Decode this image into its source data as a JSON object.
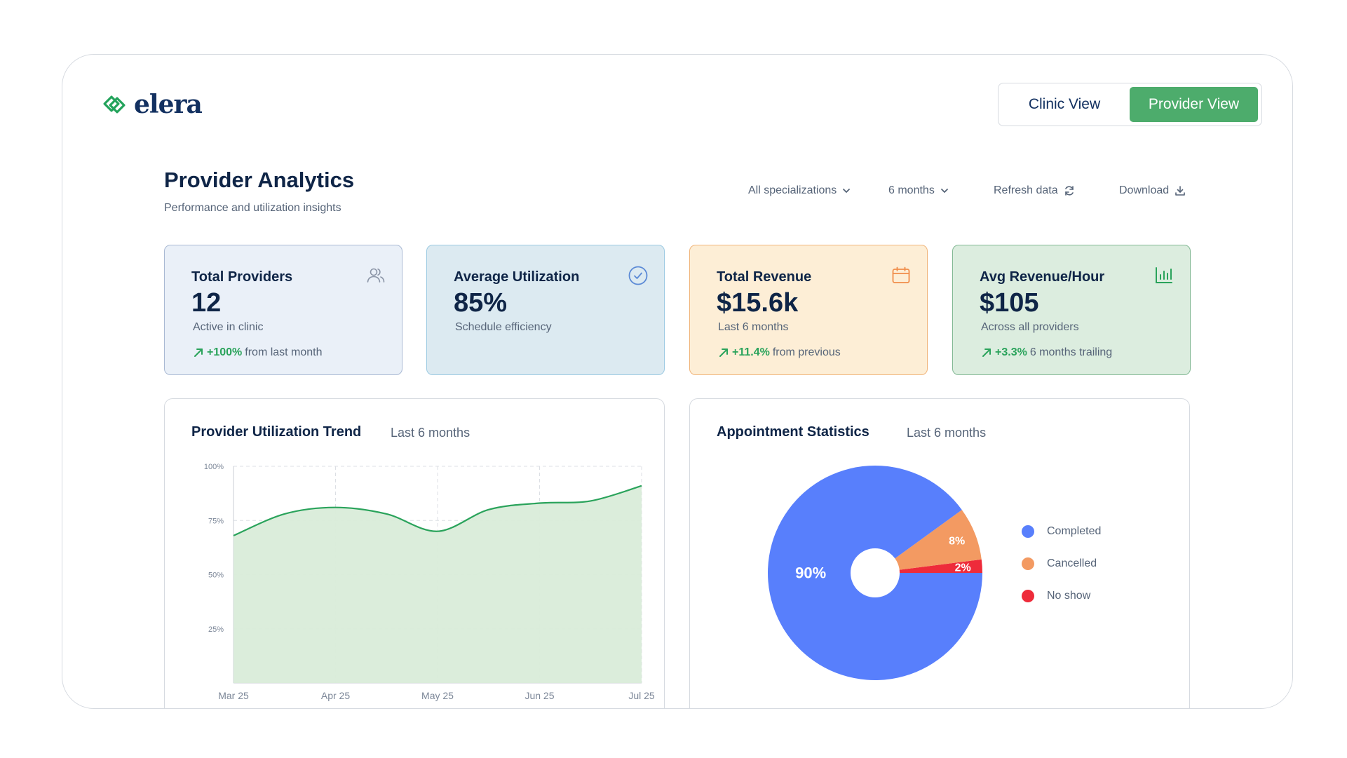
{
  "brand": {
    "name": "elera",
    "color": "#23a35b"
  },
  "view_toggle": {
    "clinic_label": "Clinic View",
    "provider_label": "Provider View",
    "active": "Provider View",
    "active_color": "#4dac6c"
  },
  "header": {
    "title": "Provider Analytics",
    "subtitle": "Performance and utilization insights"
  },
  "toolbar": {
    "specialization": {
      "label": "All specializations",
      "icon": "chevron-down-icon"
    },
    "period": {
      "label": "6 months",
      "icon": "chevron-down-icon"
    },
    "refresh": {
      "label": "Refresh data",
      "icon": "refresh-icon"
    },
    "download": {
      "label": "Download",
      "icon": "download-icon"
    }
  },
  "kpi_cards": [
    {
      "title": "Total Providers",
      "value": "12",
      "subtitle": "Active in clinic",
      "trend_pct": "+100%",
      "trend_text": "from last month",
      "icon": "users-icon"
    },
    {
      "title": "Average Utilization",
      "value": "85%",
      "subtitle": "Schedule efficiency",
      "icon": "check-circle-icon"
    },
    {
      "title": "Total Revenue",
      "value": "$15.6k",
      "subtitle": "Last 6 months",
      "trend_pct": "+11.4%",
      "trend_text": "from previous",
      "icon": "calendar-icon"
    },
    {
      "title": "Avg Revenue/Hour",
      "value": "$105",
      "subtitle": "Across all providers",
      "trend_pct": "+3.3%",
      "trend_text": "6 months trailing",
      "icon": "bar-chart-icon"
    }
  ],
  "trend_panel": {
    "title": "Provider Utilization Trend",
    "period": "Last 6 months"
  },
  "stats_panel": {
    "title": "Appointment Statistics",
    "period": "Last 6 months"
  },
  "chart_data": [
    {
      "type": "area",
      "x": [
        "Mar 25",
        "Apr 25",
        "May 25",
        "Jun 25",
        "Jul 25"
      ],
      "y_ticks": [
        "100%",
        "75%",
        "50%",
        "25%"
      ],
      "ylim": [
        0,
        100
      ],
      "grid": true,
      "series": [
        {
          "x": [
            0,
            0.5,
            1,
            1.5,
            2,
            2.5,
            3,
            3.5,
            4
          ],
          "values": [
            68,
            78,
            81,
            78,
            70,
            80,
            83,
            84,
            91
          ],
          "color": "#2aa35b",
          "fill": "#d9ecd9"
        }
      ]
    },
    {
      "type": "pie",
      "slices": [
        {
          "label": "Completed",
          "value": 90,
          "display": "90%",
          "color": "#587ffc"
        },
        {
          "label": "Cancelled",
          "value": 8,
          "display": "8%",
          "color": "#f39a62"
        },
        {
          "label": "No show",
          "value": 2,
          "display": "2%",
          "color": "#ee2b3a"
        }
      ],
      "legend_position": "right"
    }
  ]
}
